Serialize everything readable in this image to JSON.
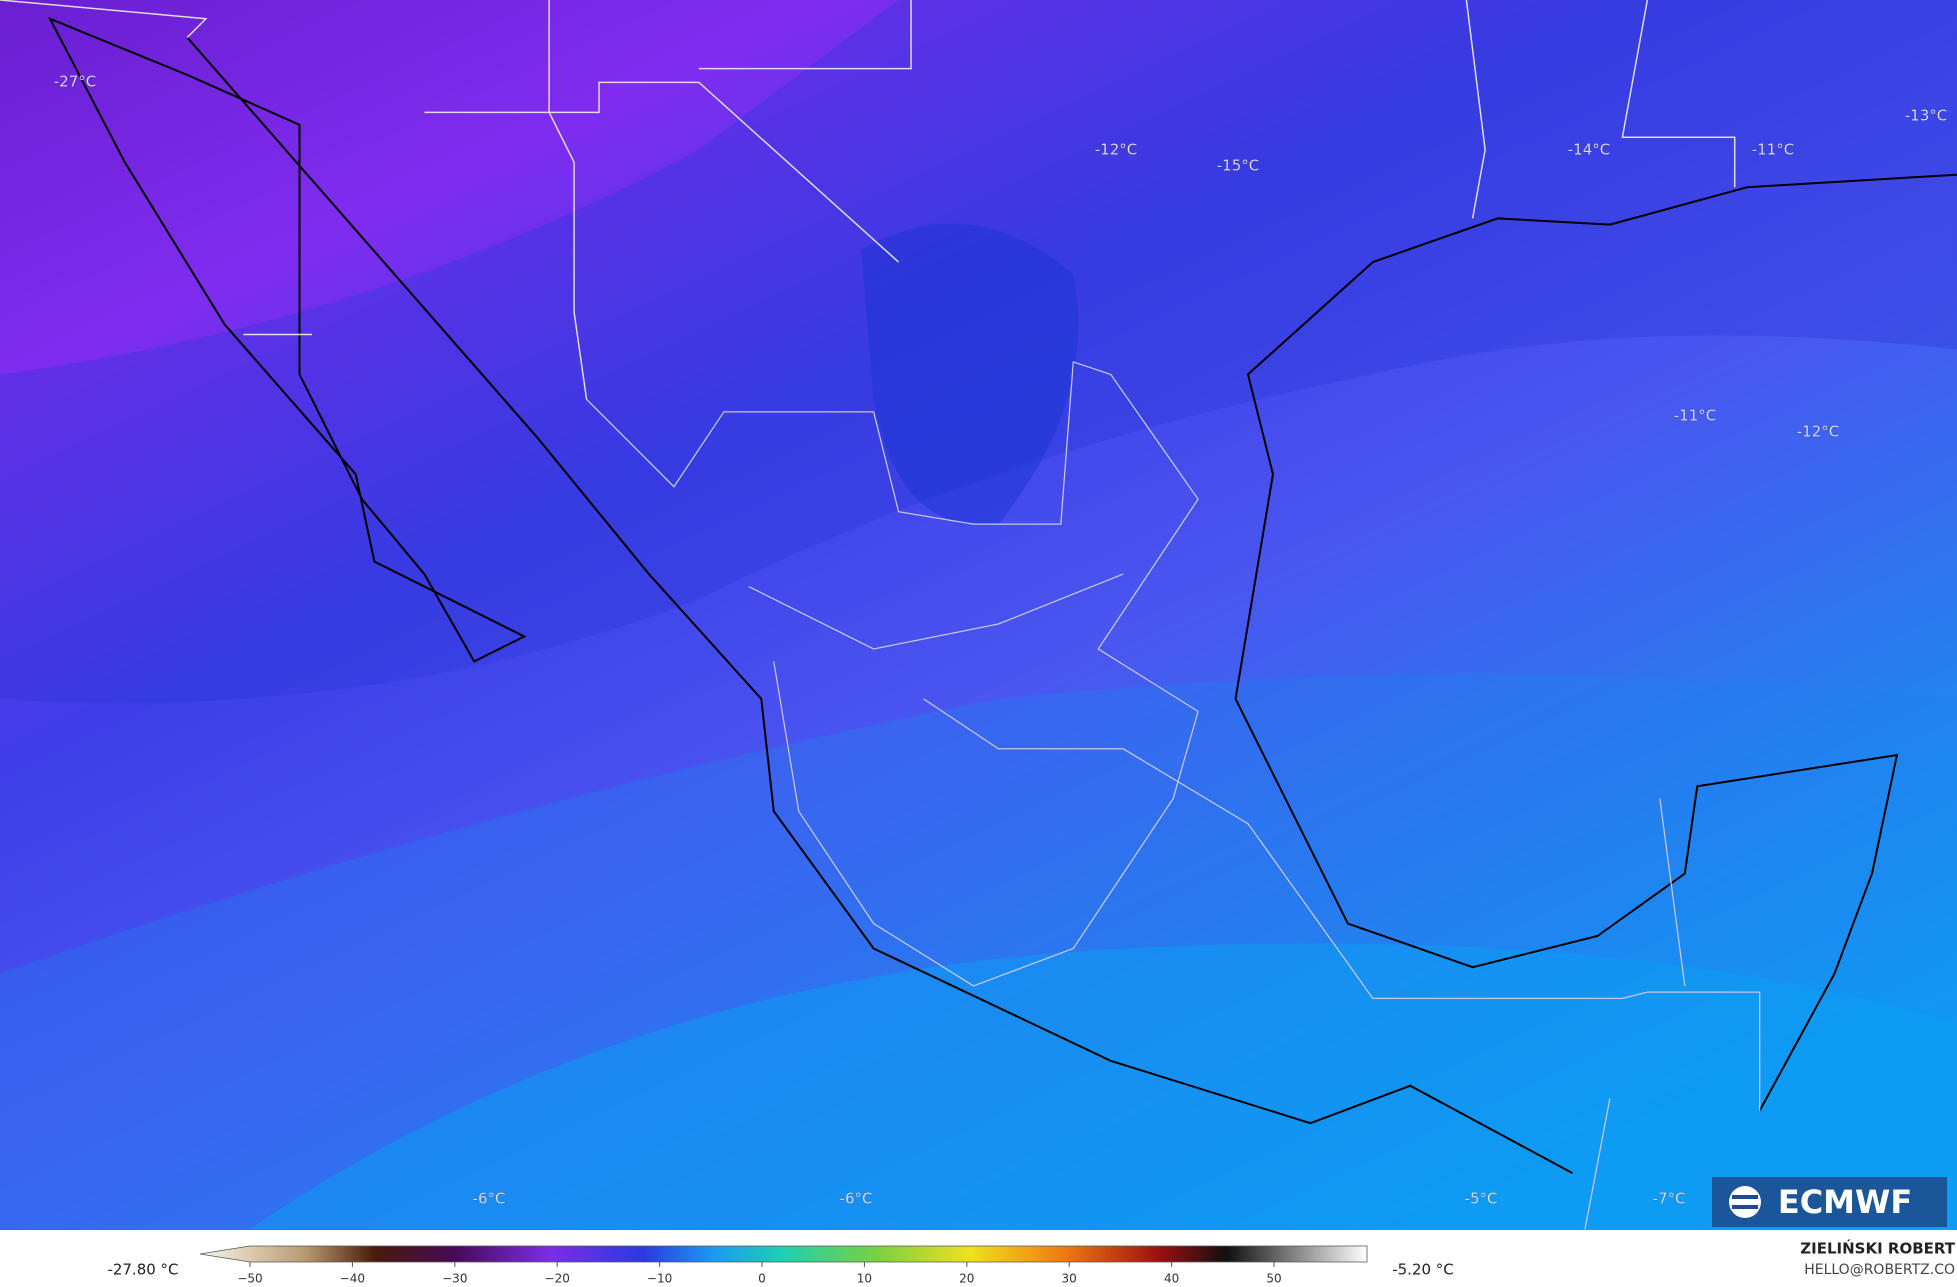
{
  "map": {
    "contour_labels": [
      "-27°C",
      "-12°C",
      "-15°C",
      "-14°C",
      "-11°C",
      "-13°C",
      "-11°C",
      "-12°C",
      "-6°C",
      "-6°C",
      "-5°C",
      "-7°C"
    ],
    "legend": {
      "min_label": "-27.80 °C",
      "max_label": "-5.20 °C",
      "ticks": [
        {
          "value": -50,
          "label": "−50"
        },
        {
          "value": -40,
          "label": "−40"
        },
        {
          "value": -30,
          "label": "−30"
        },
        {
          "value": -20,
          "label": "−20"
        },
        {
          "value": -10,
          "label": "−10"
        },
        0,
        10,
        20,
        30,
        40,
        50
      ]
    },
    "credit": {
      "author": "ZIELIŃSKI ROBERT",
      "contact": "HELLO@ROBERTZ.CO"
    },
    "logo": "ECMWF"
  }
}
